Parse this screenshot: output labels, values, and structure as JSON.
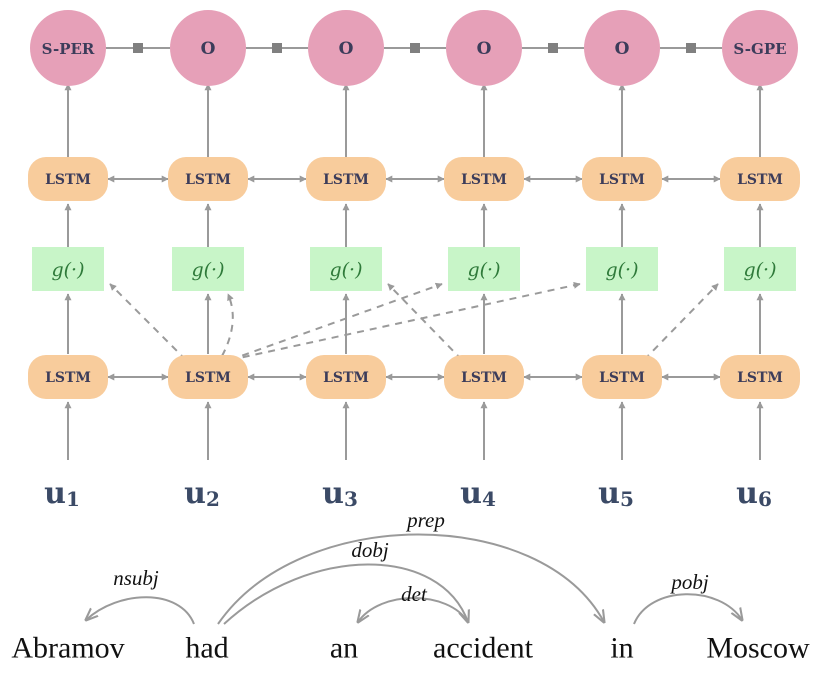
{
  "columns": [
    {
      "tag": "S-PER",
      "lower": "LSTM",
      "upper": "LSTM",
      "func": "g(·)",
      "input_base": "u",
      "input_sub": "1"
    },
    {
      "tag": "O",
      "lower": "LSTM",
      "upper": "LSTM",
      "func": "g(·)",
      "input_base": "u",
      "input_sub": "2"
    },
    {
      "tag": "O",
      "lower": "LSTM",
      "upper": "LSTM",
      "func": "g(·)",
      "input_base": "u",
      "input_sub": "3"
    },
    {
      "tag": "O",
      "lower": "LSTM",
      "upper": "LSTM",
      "func": "g(·)",
      "input_base": "u",
      "input_sub": "4"
    },
    {
      "tag": "O",
      "lower": "LSTM",
      "upper": "LSTM",
      "func": "g(·)",
      "input_base": "u",
      "input_sub": "5"
    },
    {
      "tag": "S-GPE",
      "lower": "LSTM",
      "upper": "LSTM",
      "func": "g(·)",
      "input_base": "u",
      "input_sub": "6"
    }
  ],
  "sentence": [
    "Abramov",
    "had",
    "an",
    "accident",
    "in",
    "Moscow"
  ],
  "dependencies": [
    {
      "label": "nsubj",
      "head": 1,
      "dependent": 0
    },
    {
      "label": "prep",
      "head": 1,
      "dependent": 4
    },
    {
      "label": "dobj",
      "head": 1,
      "dependent": 3
    },
    {
      "label": "det",
      "head": 3,
      "dependent": 2
    },
    {
      "label": "pobj",
      "head": 4,
      "dependent": 5
    }
  ],
  "graph_edges": [
    {
      "from": 1,
      "to": 0
    },
    {
      "from": 1,
      "to": 1
    },
    {
      "from": 1,
      "to": 3
    },
    {
      "from": 1,
      "to": 4
    },
    {
      "from": 3,
      "to": 2
    },
    {
      "from": 4,
      "to": 5
    }
  ],
  "colors": {
    "tag_node": "#e6a0b8",
    "lstm_node": "#f8cc9c",
    "g_box": "#c8f5c8",
    "edge": "#9a9a9a",
    "crf_square": "#808080"
  }
}
